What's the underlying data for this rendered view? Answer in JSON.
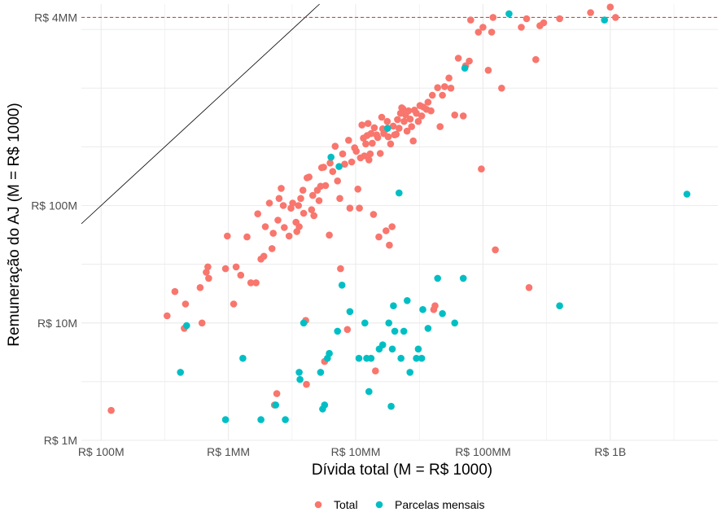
{
  "chart_data": {
    "type": "scatter",
    "title": "",
    "xlabel": "Dívida total (M = R$ 1000)",
    "ylabel": "Remuneração do AJ (M = R$ 1000)",
    "x_scale": "log10",
    "y_scale": "log10",
    "xlim": [
      70000,
      7000000000
    ],
    "ylim": [
      1000,
      5200000
    ],
    "x_ticks": [
      {
        "value": 100000,
        "label": "R$ 100M"
      },
      {
        "value": 1000000,
        "label": "R$ 1MM"
      },
      {
        "value": 10000000,
        "label": "R$ 10MM"
      },
      {
        "value": 100000000,
        "label": "R$ 100MM"
      },
      {
        "value": 1000000000,
        "label": "R$ 1B"
      }
    ],
    "y_ticks": [
      {
        "value": 1000,
        "label": "R$ 1M"
      },
      {
        "value": 10000,
        "label": "R$ 10M"
      },
      {
        "value": 100000,
        "label": "R$ 100M"
      },
      {
        "value": 4000000,
        "label": "R$ 4MM"
      }
    ],
    "reference_hline": {
      "value": 4000000,
      "color": "#c0392b",
      "style": "dashed"
    },
    "reference_diagonal": {
      "relation": "y = x",
      "color": "#000000"
    },
    "grid": true,
    "legend_position": "bottom",
    "series": [
      {
        "name": "Total",
        "color": "#F8766D",
        "points": [
          [
            120000,
            1800
          ],
          [
            330000,
            11500
          ],
          [
            380000,
            18500
          ],
          [
            450000,
            9000
          ],
          [
            460000,
            14500
          ],
          [
            600000,
            20000
          ],
          [
            620000,
            10000
          ],
          [
            670000,
            27000
          ],
          [
            690000,
            30000
          ],
          [
            700000,
            24000
          ],
          [
            950000,
            29000
          ],
          [
            980000,
            55000
          ],
          [
            1100000,
            14500
          ],
          [
            1150000,
            30000
          ],
          [
            1250000,
            25500
          ],
          [
            1400000,
            54000
          ],
          [
            1500000,
            22000
          ],
          [
            1650000,
            22000
          ],
          [
            1700000,
            85000
          ],
          [
            1800000,
            35000
          ],
          [
            1900000,
            37000
          ],
          [
            1950000,
            66000
          ],
          [
            2100000,
            105000
          ],
          [
            2200000,
            43000
          ],
          [
            2250000,
            58000
          ],
          [
            2300000,
            2000
          ],
          [
            2400000,
            2500
          ],
          [
            2450000,
            75000
          ],
          [
            2500000,
            115000
          ],
          [
            2600000,
            140000
          ],
          [
            2700000,
            100000
          ],
          [
            2750000,
            65000
          ],
          [
            3000000,
            55000
          ],
          [
            3100000,
            95000
          ],
          [
            3200000,
            105000
          ],
          [
            3400000,
            72000
          ],
          [
            3450000,
            60000
          ],
          [
            3550000,
            100000
          ],
          [
            3600000,
            66000
          ],
          [
            3700000,
            115000
          ],
          [
            3850000,
            135000
          ],
          [
            3900000,
            86000
          ],
          [
            4050000,
            10500
          ],
          [
            4100000,
            3000
          ],
          [
            4150000,
            172000
          ],
          [
            4300000,
            175000
          ],
          [
            4500000,
            92000
          ],
          [
            4600000,
            122000
          ],
          [
            4700000,
            82000
          ],
          [
            5000000,
            135000
          ],
          [
            5150000,
            110000
          ],
          [
            5300000,
            146000
          ],
          [
            5400000,
            210000
          ],
          [
            5600000,
            212000
          ],
          [
            5700000,
            4700
          ],
          [
            5800000,
            148000
          ],
          [
            6200000,
            56000
          ],
          [
            6300000,
            230000
          ],
          [
            6600000,
            195000
          ],
          [
            6900000,
            320000
          ],
          [
            7200000,
            162000
          ],
          [
            7500000,
            115000
          ],
          [
            7600000,
            29000
          ],
          [
            7900000,
            275000
          ],
          [
            8200000,
            225000
          ],
          [
            8600000,
            8800
          ],
          [
            8800000,
            360000
          ],
          [
            9000000,
            95000
          ],
          [
            9300000,
            235000
          ],
          [
            9800000,
            310000
          ],
          [
            10100000,
            290000
          ],
          [
            10400000,
            138000
          ],
          [
            10700000,
            95000
          ],
          [
            10900000,
            255000
          ],
          [
            11200000,
            485000
          ],
          [
            11500000,
            375000
          ],
          [
            11700000,
            265000
          ],
          [
            12000000,
            335000
          ],
          [
            12300000,
            395000
          ],
          [
            12500000,
            500000
          ],
          [
            12700000,
            245000
          ],
          [
            13000000,
            275000
          ],
          [
            13200000,
            410000
          ],
          [
            13500000,
            340000
          ],
          [
            13800000,
            84000
          ],
          [
            14000000,
            460000
          ],
          [
            14300000,
            3900
          ],
          [
            14600000,
            400000
          ],
          [
            14900000,
            380000
          ],
          [
            15200000,
            54000
          ],
          [
            15600000,
            278000
          ],
          [
            16000000,
            565000
          ],
          [
            16300000,
            450000
          ],
          [
            16600000,
            410000
          ],
          [
            17000000,
            440000
          ],
          [
            17300000,
            61000
          ],
          [
            17700000,
            520000
          ],
          [
            18000000,
            385000
          ],
          [
            18400000,
            46000
          ],
          [
            18800000,
            335000
          ],
          [
            19300000,
            66000
          ],
          [
            19700000,
            475000
          ],
          [
            20200000,
            400000
          ],
          [
            20800000,
            405000
          ],
          [
            21300000,
            540000
          ],
          [
            21900000,
            455000
          ],
          [
            22500000,
            610000
          ],
          [
            23000000,
            680000
          ],
          [
            23500000,
            665000
          ],
          [
            24000000,
            520000
          ],
          [
            24700000,
            590000
          ],
          [
            25300000,
            430000
          ],
          [
            26000000,
            640000
          ],
          [
            26800000,
            545000
          ],
          [
            27500000,
            470000
          ],
          [
            28300000,
            355000
          ],
          [
            29000000,
            650000
          ],
          [
            30000000,
            610000
          ],
          [
            31000000,
            520000
          ],
          [
            32000000,
            710000
          ],
          [
            33000000,
            580000
          ],
          [
            34000000,
            690000
          ],
          [
            36000000,
            660000
          ],
          [
            37000000,
            760000
          ],
          [
            39000000,
            640000
          ],
          [
            40000000,
            870000
          ],
          [
            41000000,
            13000
          ],
          [
            42000000,
            14000
          ],
          [
            44000000,
            1010000
          ],
          [
            46000000,
            470000
          ],
          [
            48000000,
            870000
          ],
          [
            50000000,
            1030000
          ],
          [
            54000000,
            1220000
          ],
          [
            56000000,
            1000000
          ],
          [
            60000000,
            590000
          ],
          [
            64000000,
            1800000
          ],
          [
            70000000,
            580000
          ],
          [
            73000000,
            1550000
          ],
          [
            78000000,
            1700000
          ],
          [
            80000000,
            3800000
          ],
          [
            92000000,
            3000000
          ],
          [
            97000000,
            205000
          ],
          [
            100000000,
            3300000
          ],
          [
            110000000,
            1420000
          ],
          [
            117000000,
            3000000
          ],
          [
            120000000,
            4000000
          ],
          [
            125000000,
            42000
          ],
          [
            140000000,
            1000000
          ],
          [
            200000000,
            3300000
          ],
          [
            220000000,
            3900000
          ],
          [
            230000000,
            20000
          ],
          [
            260000000,
            1750000
          ],
          [
            280000000,
            3400000
          ],
          [
            300000000,
            3600000
          ],
          [
            400000000,
            3900000
          ],
          [
            700000000,
            4400000
          ],
          [
            1000000000,
            4900000
          ],
          [
            1100000000,
            4000000
          ]
        ]
      },
      {
        "name": "Parcelas mensais",
        "color": "#00BFC4",
        "points": [
          [
            420000,
            3800
          ],
          [
            470000,
            9500
          ],
          [
            950000,
            1500
          ],
          [
            1300000,
            5000
          ],
          [
            1800000,
            1500
          ],
          [
            2350000,
            2000
          ],
          [
            2800000,
            1500
          ],
          [
            3600000,
            3800
          ],
          [
            3650000,
            3300
          ],
          [
            3900000,
            10000
          ],
          [
            5300000,
            3800
          ],
          [
            5500000,
            1850
          ],
          [
            5700000,
            2000
          ],
          [
            6000000,
            5000
          ],
          [
            6200000,
            5500
          ],
          [
            6400000,
            258000
          ],
          [
            7200000,
            8500
          ],
          [
            7400000,
            215000
          ],
          [
            7800000,
            21000
          ],
          [
            9000000,
            12500
          ],
          [
            10600000,
            5000
          ],
          [
            11800000,
            10000
          ],
          [
            12200000,
            5000
          ],
          [
            12700000,
            2600
          ],
          [
            13200000,
            5000
          ],
          [
            15300000,
            6000
          ],
          [
            16300000,
            6500
          ],
          [
            17800000,
            455000
          ],
          [
            18200000,
            10000
          ],
          [
            19000000,
            1950
          ],
          [
            19400000,
            6000
          ],
          [
            19800000,
            14000
          ],
          [
            20300000,
            8500
          ],
          [
            21900000,
            128000
          ],
          [
            22700000,
            5000
          ],
          [
            23900000,
            8500
          ],
          [
            25400000,
            15500
          ],
          [
            26700000,
            3800
          ],
          [
            30000000,
            5000
          ],
          [
            31000000,
            6000
          ],
          [
            33000000,
            5000
          ],
          [
            33700000,
            13000
          ],
          [
            37000000,
            9000
          ],
          [
            44000000,
            24000
          ],
          [
            48000000,
            12000
          ],
          [
            60000000,
            10000
          ],
          [
            70000000,
            24000
          ],
          [
            72000000,
            1480000
          ],
          [
            160000000,
            4300000
          ],
          [
            400000000,
            14000
          ],
          [
            900000000,
            3800000
          ],
          [
            4000000000,
            125000
          ]
        ]
      }
    ]
  },
  "legend": {
    "items": [
      {
        "label": "Total",
        "color": "#F8766D"
      },
      {
        "label": "Parcelas mensais",
        "color": "#00BFC4"
      }
    ]
  }
}
